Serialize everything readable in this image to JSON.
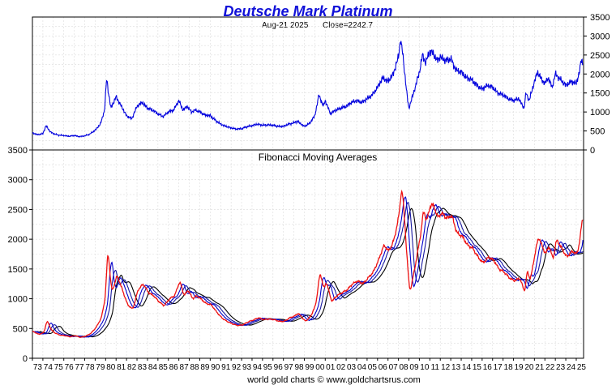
{
  "header": {
    "title": "Deutsche Mark Platinum",
    "date": "Aug-21  2025",
    "close_label": "Close=2242.7"
  },
  "footer": {
    "credit": "world gold charts © www.goldchartsrus.com"
  },
  "colors": {
    "title": "#1010d8",
    "price_line": "#0000dd",
    "grid": "#dcdcdc",
    "ma_fast": "#ee1111",
    "ma_mid": "#0000cc",
    "ma_slow": "#000000"
  },
  "chart_data": [
    {
      "type": "line",
      "panel": "price",
      "title": "",
      "subtitle": "Aug-21  2025   Close=2242.7",
      "xlabel": "",
      "ylabel": "",
      "ylim": [
        0,
        3500
      ],
      "yticks": [
        0,
        500,
        1000,
        1500,
        2000,
        2500,
        3000,
        3500
      ],
      "xlim": [
        1973.0,
        2025.7
      ],
      "grid": true,
      "series": [
        {
          "x": [
            1973.0,
            1973.5,
            1974.0,
            1974.3,
            1974.7,
            1975.0,
            1975.5,
            1976.0,
            1976.5,
            1977.0,
            1977.5,
            1978.0,
            1978.5,
            1979.0,
            1979.5,
            1979.9,
            1980.1,
            1980.25,
            1980.5,
            1981.0,
            1981.5,
            1982.0,
            1982.5,
            1983.0,
            1983.5,
            1984.0,
            1984.5,
            1985.0,
            1985.5,
            1986.0,
            1986.5,
            1987.0,
            1987.4,
            1987.8,
            1988.2,
            1988.6,
            1989.0,
            1989.5,
            1990.0,
            1990.5,
            1991.0,
            1991.5,
            1992.0,
            1992.5,
            1993.0,
            1993.5,
            1994.0,
            1994.5,
            1995.0,
            1995.5,
            1996.0,
            1996.5,
            1997.0,
            1997.5,
            1998.0,
            1998.3,
            1998.7,
            1999.0,
            1999.5,
            2000.0,
            2000.4,
            2000.8,
            2001.0,
            2001.5,
            2002.0,
            2002.5,
            2003.0,
            2003.5,
            2004.0,
            2004.5,
            2005.0,
            2005.5,
            2006.0,
            2006.5,
            2007.0,
            2007.5,
            2008.0,
            2008.2,
            2008.4,
            2008.7,
            2008.9,
            2009.0,
            2009.5,
            2010.0,
            2010.3,
            2010.6,
            2011.0,
            2011.3,
            2011.7,
            2012.0,
            2012.5,
            2013.0,
            2013.5,
            2014.0,
            2014.5,
            2015.0,
            2015.5,
            2016.0,
            2016.5,
            2017.0,
            2017.5,
            2018.0,
            2018.5,
            2019.0,
            2019.5,
            2020.0,
            2020.2,
            2020.5,
            2021.0,
            2021.3,
            2021.7,
            2022.0,
            2022.3,
            2022.7,
            2023.0,
            2023.5,
            2024.0,
            2024.5,
            2025.0,
            2025.3,
            2025.5,
            2025.64
          ],
          "values": [
            450,
            400,
            430,
            640,
            480,
            430,
            390,
            380,
            360,
            380,
            350,
            370,
            420,
            520,
            680,
            1050,
            1900,
            1550,
            1100,
            1400,
            1150,
            900,
            820,
            1150,
            1250,
            1100,
            1050,
            950,
            880,
            1000,
            1050,
            1300,
            1050,
            1150,
            1000,
            1050,
            1000,
            920,
            900,
            780,
            680,
            620,
            580,
            550,
            560,
            610,
            640,
            680,
            650,
            660,
            650,
            620,
            620,
            680,
            710,
            760,
            680,
            620,
            700,
            900,
            1450,
            1150,
            1300,
            950,
            1050,
            1100,
            1150,
            1250,
            1300,
            1250,
            1350,
            1450,
            1650,
            1900,
            1800,
            2000,
            2450,
            2920,
            2550,
            1750,
            1250,
            1100,
            1550,
            2050,
            2500,
            2300,
            2600,
            2550,
            2350,
            2450,
            2350,
            2400,
            2100,
            2050,
            1900,
            1850,
            1700,
            1600,
            1700,
            1650,
            1500,
            1450,
            1350,
            1300,
            1350,
            1100,
            1500,
            1300,
            1800,
            2050,
            1850,
            1750,
            1900,
            1650,
            2000,
            1850,
            1700,
            1800,
            1750,
            2050,
            2400,
            2242.7
          ]
        }
      ]
    },
    {
      "type": "line",
      "panel": "moving-averages",
      "title": "Fibonacci Moving Averages",
      "xlabel": "",
      "ylabel": "",
      "ylim": [
        0,
        3500
      ],
      "yticks": [
        0,
        500,
        1000,
        1500,
        2000,
        2500,
        3000,
        3500
      ],
      "xlim": [
        1973.0,
        2025.7
      ],
      "grid": true,
      "x_tick_labels": [
        "73",
        "74",
        "75",
        "76",
        "77",
        "78",
        "79",
        "80",
        "81",
        "82",
        "83",
        "84",
        "85",
        "86",
        "87",
        "88",
        "89",
        "90",
        "91",
        "92",
        "93",
        "94",
        "95",
        "96",
        "97",
        "98",
        "99",
        "00",
        "01",
        "02",
        "03",
        "04",
        "05",
        "06",
        "07",
        "08",
        "09",
        "10",
        "11",
        "12",
        "13",
        "14",
        "15",
        "16",
        "17",
        "18",
        "19",
        "20",
        "21",
        "22",
        "23",
        "24",
        "25"
      ],
      "x_tick_years": [
        1973,
        1974,
        1975,
        1976,
        1977,
        1978,
        1979,
        1980,
        1981,
        1982,
        1983,
        1984,
        1985,
        1986,
        1987,
        1988,
        1989,
        1990,
        1991,
        1992,
        1993,
        1994,
        1995,
        1996,
        1997,
        1998,
        1999,
        2000,
        2001,
        2002,
        2003,
        2004,
        2005,
        2006,
        2007,
        2008,
        2009,
        2010,
        2011,
        2012,
        2013,
        2014,
        2015,
        2016,
        2017,
        2018,
        2019,
        2020,
        2021,
        2022,
        2023,
        2024,
        2025
      ],
      "series": [
        {
          "color": "#ee1111",
          "lag": 0.0,
          "smooth": 0.2
        },
        {
          "color": "#0000cc",
          "lag": 0.25,
          "smooth": 0.35
        },
        {
          "color": "#1a1aa0",
          "lag": 0.45,
          "smooth": 0.55
        },
        {
          "color": "#000000",
          "lag": 0.7,
          "smooth": 0.8
        }
      ]
    }
  ]
}
